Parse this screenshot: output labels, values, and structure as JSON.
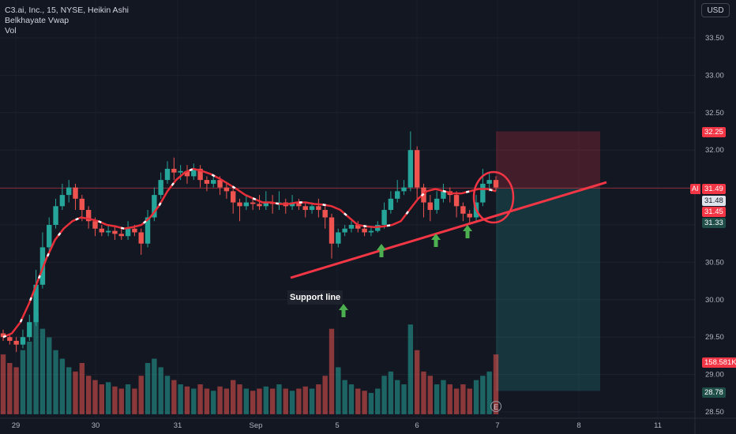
{
  "legend": {
    "symbol_line": "C3.ai, Inc., 15, NYSE, Heikin Ashi",
    "indicator1": "Belkhayate Vwap",
    "indicator2": "Vol"
  },
  "currency_button": "USD",
  "price_tags": {
    "ticker": "AI",
    "last_price": "31.49",
    "tag2": "31.48",
    "tag3": "31.45",
    "target_top": "32.25",
    "tag5": "31.33",
    "volume": "158.581K",
    "stop_bottom": "28.78"
  },
  "annotation": {
    "support_label": "Support line"
  },
  "event_badge": "E",
  "colors": {
    "background": "#131722",
    "up": "#26a69a",
    "down": "#ef5350",
    "vwap_line": "#e8303a",
    "support_line": "#f23645",
    "arrow": "#4caf50",
    "target_zone": "#f23645",
    "stop_zone": "#26a69a"
  },
  "chart_data": {
    "type": "candlestick",
    "title": "C3.ai, Inc., 15, NYSE, Heikin Ashi",
    "y_axis": {
      "ticks": [
        "33.50",
        "33.00",
        "32.50",
        "32.00",
        "31.50",
        "31.00",
        "30.50",
        "30.00",
        "29.50",
        "29.00",
        "28.50"
      ],
      "range": [
        28.45,
        33.75
      ]
    },
    "x_axis": {
      "ticks": [
        "29",
        "30",
        "31",
        "Sep",
        "5",
        "6",
        "7",
        "8",
        "11"
      ]
    },
    "candles": [
      [
        29.55,
        29.5,
        29.6,
        29.45
      ],
      [
        29.5,
        29.45,
        29.55,
        29.4
      ],
      [
        29.45,
        29.4,
        29.5,
        29.3
      ],
      [
        29.4,
        29.5,
        29.6,
        29.35
      ],
      [
        29.5,
        29.7,
        29.8,
        29.45
      ],
      [
        29.7,
        30.2,
        30.4,
        29.65
      ],
      [
        30.2,
        30.7,
        30.9,
        30.15
      ],
      [
        30.7,
        31.0,
        31.1,
        30.65
      ],
      [
        31.0,
        31.25,
        31.35,
        30.95
      ],
      [
        31.25,
        31.4,
        31.55,
        31.2
      ],
      [
        31.4,
        31.5,
        31.6,
        31.3
      ],
      [
        31.5,
        31.35,
        31.55,
        31.2
      ],
      [
        31.35,
        31.2,
        31.4,
        31.05
      ],
      [
        31.2,
        31.05,
        31.25,
        30.95
      ],
      [
        31.05,
        30.95,
        31.1,
        30.85
      ],
      [
        30.95,
        30.9,
        31.0,
        30.85
      ],
      [
        30.9,
        30.92,
        31.0,
        30.85
      ],
      [
        30.92,
        30.88,
        30.98,
        30.8
      ],
      [
        30.88,
        30.85,
        30.95,
        30.8
      ],
      [
        30.85,
        30.95,
        31.05,
        30.8
      ],
      [
        30.95,
        30.9,
        31.0,
        30.85
      ],
      [
        30.9,
        30.75,
        30.95,
        30.6
      ],
      [
        30.75,
        31.1,
        31.2,
        30.7
      ],
      [
        31.1,
        31.4,
        31.5,
        31.05
      ],
      [
        31.4,
        31.6,
        31.7,
        31.35
      ],
      [
        31.6,
        31.75,
        31.85,
        31.55
      ],
      [
        31.75,
        31.7,
        31.9,
        31.6
      ],
      [
        31.7,
        31.72,
        31.8,
        31.6
      ],
      [
        31.72,
        31.65,
        31.8,
        31.55
      ],
      [
        31.65,
        31.75,
        31.82,
        31.6
      ],
      [
        31.75,
        31.6,
        31.8,
        31.5
      ],
      [
        31.6,
        31.55,
        31.65,
        31.45
      ],
      [
        31.55,
        31.6,
        31.65,
        31.5
      ],
      [
        31.6,
        31.5,
        31.65,
        31.4
      ],
      [
        31.5,
        31.45,
        31.55,
        31.35
      ],
      [
        31.45,
        31.3,
        31.5,
        31.15
      ],
      [
        31.3,
        31.25,
        31.35,
        31.05
      ],
      [
        31.25,
        31.3,
        31.4,
        31.2
      ],
      [
        31.3,
        31.28,
        31.35,
        31.2
      ],
      [
        31.28,
        31.25,
        31.4,
        31.2
      ],
      [
        31.25,
        31.3,
        31.45,
        31.2
      ],
      [
        31.3,
        31.28,
        31.4,
        31.15
      ],
      [
        31.28,
        31.3,
        31.45,
        31.2
      ],
      [
        31.3,
        31.25,
        31.35,
        31.15
      ],
      [
        31.25,
        31.3,
        31.4,
        31.2
      ],
      [
        31.3,
        31.25,
        31.35,
        31.2
      ],
      [
        31.25,
        31.2,
        31.3,
        31.1
      ],
      [
        31.2,
        31.25,
        31.3,
        31.15
      ],
      [
        31.25,
        31.2,
        31.35,
        31.1
      ],
      [
        31.2,
        31.1,
        31.25,
        30.95
      ],
      [
        31.1,
        30.75,
        31.15,
        30.55
      ],
      [
        30.75,
        30.9,
        30.95,
        30.7
      ],
      [
        30.9,
        30.95,
        31.0,
        30.85
      ],
      [
        30.95,
        31.0,
        31.05,
        30.9
      ],
      [
        31.0,
        30.95,
        31.05,
        30.9
      ],
      [
        30.95,
        30.9,
        31.0,
        30.85
      ],
      [
        30.9,
        30.92,
        30.98,
        30.85
      ],
      [
        30.92,
        31.0,
        31.05,
        30.9
      ],
      [
        31.0,
        31.2,
        31.3,
        30.95
      ],
      [
        31.2,
        31.35,
        31.45,
        31.15
      ],
      [
        31.35,
        31.45,
        31.6,
        31.3
      ],
      [
        31.45,
        31.5,
        31.6,
        31.4
      ],
      [
        31.5,
        32.0,
        32.25,
        31.45
      ],
      [
        32.0,
        31.5,
        32.05,
        31.35
      ],
      [
        31.5,
        31.3,
        31.55,
        31.1
      ],
      [
        31.3,
        31.2,
        31.4,
        31.05
      ],
      [
        31.2,
        31.35,
        31.45,
        31.15
      ],
      [
        31.35,
        31.45,
        31.55,
        31.3
      ],
      [
        31.45,
        31.4,
        31.5,
        31.3
      ],
      [
        31.4,
        31.25,
        31.45,
        31.1
      ],
      [
        31.25,
        31.15,
        31.3,
        31.05
      ],
      [
        31.15,
        31.1,
        31.2,
        31.0
      ],
      [
        31.1,
        31.3,
        31.4,
        31.05
      ],
      [
        31.3,
        31.55,
        31.75,
        31.25
      ],
      [
        31.55,
        31.6,
        31.7,
        31.45
      ],
      [
        31.6,
        31.5,
        31.65,
        31.45
      ]
    ],
    "volumes": [
      28,
      24,
      22,
      30,
      34,
      48,
      40,
      36,
      30,
      26,
      22,
      20,
      24,
      18,
      16,
      14,
      15,
      13,
      12,
      14,
      12,
      18,
      24,
      26,
      22,
      18,
      16,
      14,
      13,
      12,
      14,
      12,
      11,
      13,
      12,
      16,
      14,
      12,
      11,
      12,
      13,
      12,
      14,
      12,
      11,
      12,
      13,
      12,
      14,
      18,
      40,
      22,
      16,
      14,
      12,
      11,
      10,
      12,
      18,
      20,
      16,
      14,
      42,
      30,
      20,
      18,
      14,
      16,
      14,
      12,
      14,
      12,
      16,
      18,
      20,
      28
    ],
    "vwap": [
      29.5,
      29.55,
      29.7,
      29.95,
      30.25,
      30.55,
      30.8,
      30.95,
      31.05,
      31.1,
      31.08,
      31.05,
      31.0,
      30.98,
      30.95,
      30.97,
      31.0,
      31.1,
      31.25,
      31.45,
      31.6,
      31.7,
      31.75,
      31.72,
      31.68,
      31.62,
      31.55,
      31.48,
      31.4,
      31.35,
      31.3,
      31.3,
      31.28,
      31.28,
      31.3,
      31.3,
      31.28,
      31.27,
      31.25,
      31.2,
      31.1,
      31.0,
      30.98,
      30.97,
      30.98,
      31.0,
      31.05,
      31.2,
      31.35,
      31.45,
      31.48,
      31.45,
      31.42,
      31.42,
      31.45,
      31.48,
      31.48,
      31.45
    ],
    "support_line": {
      "from": [
        30.8,
        "5"
      ],
      "to": [
        31.55,
        "8"
      ]
    },
    "position_tool": {
      "target": 32.25,
      "entry": 31.49,
      "stop": 28.78
    }
  }
}
